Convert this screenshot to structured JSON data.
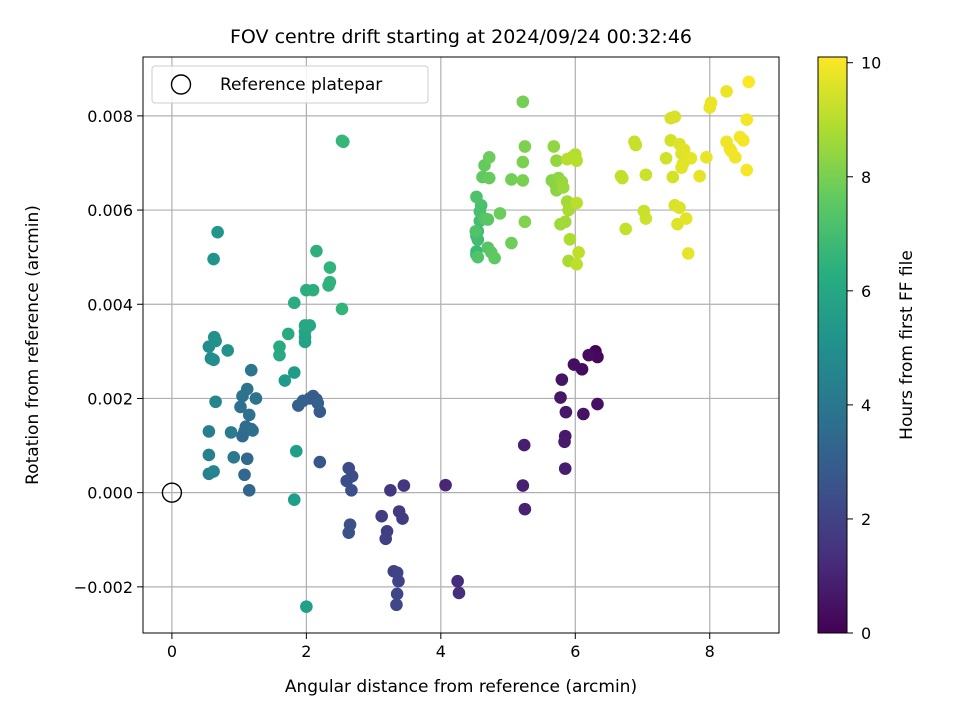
{
  "chart_data": {
    "type": "scatter",
    "title": "FOV centre drift starting at 2024/09/24 00:32:46",
    "xlabel": "Angular distance from reference (arcmin)",
    "ylabel": "Rotation from reference (arcmin)",
    "xlim": [
      -0.43,
      9.03
    ],
    "ylim": [
      -0.00298,
      0.00925
    ],
    "x_ticks": [
      {
        "v": 0,
        "label": "0"
      },
      {
        "v": 2,
        "label": "2"
      },
      {
        "v": 4,
        "label": "4"
      },
      {
        "v": 6,
        "label": "6"
      },
      {
        "v": 8,
        "label": "8"
      }
    ],
    "y_ticks": [
      {
        "v": -0.002,
        "label": "−0.002"
      },
      {
        "v": 0,
        "label": "0.000"
      },
      {
        "v": 0.002,
        "label": "0.002"
      },
      {
        "v": 0.004,
        "label": "0.004"
      },
      {
        "v": 0.006,
        "label": "0.006"
      },
      {
        "v": 0.008,
        "label": "0.008"
      }
    ],
    "grid": true,
    "legend": {
      "placement": "top-left",
      "entries": [
        "Reference platepar"
      ]
    },
    "reference_point": {
      "x": 0,
      "y": 0,
      "label": "Reference platepar"
    },
    "colorbar": {
      "label": "Hours from first FF file",
      "range": [
        0,
        10.1
      ],
      "ticks": [
        {
          "v": 0,
          "label": "0"
        },
        {
          "v": 2,
          "label": "2"
        },
        {
          "v": 4,
          "label": "4"
        },
        {
          "v": 6,
          "label": "6"
        },
        {
          "v": 8,
          "label": "8"
        },
        {
          "v": 10,
          "label": "10"
        }
      ],
      "colormap": "viridis"
    },
    "series": [
      {
        "points": [
          [
            6.3,
            0.003,
            0.1
          ],
          [
            6.33,
            0.00288,
            0.2
          ],
          [
            6.2,
            0.00292,
            0.3
          ],
          [
            6.1,
            0.00262,
            0.35
          ],
          [
            5.98,
            0.00272,
            0.4
          ],
          [
            6.33,
            0.00188,
            0.45
          ],
          [
            6.12,
            0.00167,
            0.5
          ],
          [
            5.8,
            0.0024,
            0.55
          ],
          [
            5.78,
            0.00202,
            0.6
          ],
          [
            5.86,
            0.00171,
            0.65
          ],
          [
            5.85,
            0.0012,
            0.7
          ],
          [
            5.84,
            0.00108,
            0.75
          ],
          [
            5.85,
            0.00051,
            0.8
          ],
          [
            5.24,
            0.00101,
            0.85
          ],
          [
            5.22,
            0.00015,
            0.9
          ],
          [
            5.25,
            -0.00035,
            0.95
          ],
          [
            4.07,
            0.00016,
            1.1
          ],
          [
            4.25,
            -0.00188,
            1.3
          ],
          [
            4.27,
            -0.00213,
            1.35
          ],
          [
            3.45,
            0.00015,
            1.6
          ],
          [
            3.25,
            5e-05,
            1.65
          ],
          [
            3.38,
            -0.0004,
            1.7
          ],
          [
            3.43,
            -0.00055,
            1.75
          ],
          [
            3.12,
            -0.0005,
            1.8
          ],
          [
            3.2,
            -0.00082,
            1.85
          ],
          [
            3.18,
            -0.00098,
            1.9
          ],
          [
            3.3,
            -0.00167,
            1.95
          ],
          [
            3.35,
            -0.0017,
            2.0
          ],
          [
            3.37,
            -0.00188,
            2.05
          ],
          [
            3.35,
            -0.00215,
            2.1
          ],
          [
            3.34,
            -0.00238,
            2.15
          ],
          [
            2.63,
            0.00052,
            2.3
          ],
          [
            2.68,
            0.00035,
            2.35
          ],
          [
            2.6,
            0.00025,
            2.4
          ],
          [
            2.67,
            5e-05,
            2.45
          ],
          [
            2.65,
            -0.00068,
            2.5
          ],
          [
            2.63,
            -0.00085,
            2.55
          ],
          [
            2.2,
            0.00065,
            2.7
          ],
          [
            2.2,
            0.00172,
            2.8
          ],
          [
            2.15,
            0.00198,
            2.9
          ],
          [
            2.1,
            0.00205,
            2.95
          ],
          [
            2.05,
            0.002,
            3.0
          ],
          [
            2.17,
            0.0019,
            3.05
          ],
          [
            1.95,
            0.00195,
            3.1
          ],
          [
            1.88,
            0.00185,
            3.15
          ],
          [
            1.15,
            5e-05,
            3.3
          ],
          [
            1.08,
            0.00038,
            3.35
          ],
          [
            1.12,
            0.00072,
            3.4
          ],
          [
            1.05,
            0.0012,
            3.45
          ],
          [
            1.08,
            0.0013,
            3.5
          ],
          [
            1.1,
            0.0014,
            3.55
          ],
          [
            1.18,
            0.00135,
            3.6
          ],
          [
            1.2,
            0.00132,
            3.65
          ],
          [
            1.15,
            0.00165,
            3.7
          ],
          [
            1.02,
            0.00182,
            3.75
          ],
          [
            1.05,
            0.00205,
            3.8
          ],
          [
            1.12,
            0.0022,
            3.85
          ],
          [
            1.25,
            0.002,
            3.9
          ],
          [
            1.18,
            0.0026,
            3.95
          ],
          [
            0.92,
            0.00075,
            4.1
          ],
          [
            0.88,
            0.00128,
            4.2
          ],
          [
            0.55,
            0.0013,
            4.3
          ],
          [
            0.55,
            0.0008,
            4.4
          ],
          [
            0.55,
            0.0004,
            4.5
          ],
          [
            0.62,
            0.00045,
            4.6
          ],
          [
            0.65,
            0.00193,
            4.7
          ],
          [
            0.58,
            0.00285,
            4.8
          ],
          [
            0.55,
            0.0031,
            4.9
          ],
          [
            0.62,
            0.00282,
            5.0
          ],
          [
            0.63,
            0.0033,
            5.05
          ],
          [
            0.65,
            0.00322,
            5.1
          ],
          [
            0.83,
            0.00302,
            5.15
          ],
          [
            0.62,
            0.00496,
            5.25
          ],
          [
            0.68,
            0.00553,
            5.35
          ],
          [
            1.68,
            0.00238,
            5.5
          ],
          [
            1.82,
            0.00255,
            5.55
          ],
          [
            1.82,
            -0.00015,
            5.6
          ],
          [
            1.85,
            0.00088,
            5.65
          ],
          [
            2.0,
            -0.00242,
            5.7
          ],
          [
            1.98,
            0.0032,
            5.8
          ],
          [
            1.98,
            0.0033,
            5.85
          ],
          [
            1.98,
            0.00342,
            5.9
          ],
          [
            2.05,
            0.00355,
            5.95
          ],
          [
            1.98,
            0.00355,
            6.0
          ],
          [
            1.6,
            0.00292,
            6.05
          ],
          [
            1.6,
            0.0031,
            6.1
          ],
          [
            1.73,
            0.00337,
            6.15
          ],
          [
            1.82,
            0.00403,
            6.2
          ],
          [
            2.0,
            0.0043,
            6.3
          ],
          [
            2.1,
            0.0043,
            6.35
          ],
          [
            2.15,
            0.00513,
            6.4
          ],
          [
            2.33,
            0.0044,
            6.45
          ],
          [
            2.35,
            0.00447,
            6.5
          ],
          [
            2.35,
            0.00478,
            6.55
          ],
          [
            2.53,
            0.0039,
            6.6
          ],
          [
            2.53,
            0.00747,
            6.7
          ],
          [
            2.55,
            0.00745,
            6.75
          ],
          [
            4.53,
            0.00505,
            6.8
          ],
          [
            4.53,
            0.00512,
            6.85
          ],
          [
            4.53,
            0.00545,
            6.9
          ],
          [
            4.55,
            0.00555,
            6.95
          ],
          [
            4.55,
            0.00537,
            7.0
          ],
          [
            4.58,
            0.00577,
            7.05
          ],
          [
            4.58,
            0.00597,
            7.1
          ],
          [
            4.6,
            0.0061,
            7.15
          ],
          [
            4.53,
            0.00628,
            7.2
          ],
          [
            4.52,
            0.00555,
            7.25
          ],
          [
            4.55,
            0.005,
            7.3
          ],
          [
            4.65,
            0.00582,
            7.35
          ],
          [
            4.7,
            0.0052,
            7.4
          ],
          [
            4.7,
            0.0058,
            7.45
          ],
          [
            4.75,
            0.0051,
            7.5
          ],
          [
            4.8,
            0.00498,
            7.55
          ],
          [
            4.62,
            0.0067,
            7.6
          ],
          [
            4.65,
            0.00695,
            7.65
          ],
          [
            4.72,
            0.00668,
            7.7
          ],
          [
            4.72,
            0.00712,
            7.75
          ],
          [
            4.88,
            0.00593,
            7.8
          ],
          [
            5.05,
            0.0053,
            7.85
          ],
          [
            5.05,
            0.00665,
            7.9
          ],
          [
            5.22,
            0.0083,
            7.95
          ],
          [
            5.22,
            0.00663,
            8.0
          ],
          [
            5.22,
            0.00702,
            8.05
          ],
          [
            5.25,
            0.00735,
            8.1
          ],
          [
            5.25,
            0.00575,
            8.15
          ],
          [
            5.65,
            0.00663,
            8.2
          ],
          [
            5.7,
            0.00655,
            8.25
          ],
          [
            5.72,
            0.00642,
            8.3
          ],
          [
            5.75,
            0.00668,
            8.35
          ],
          [
            5.68,
            0.00735,
            8.4
          ],
          [
            5.72,
            0.00705,
            8.45
          ],
          [
            5.8,
            0.0066,
            8.5
          ],
          [
            5.82,
            0.00648,
            8.55
          ],
          [
            5.78,
            0.0057,
            8.6
          ],
          [
            5.85,
            0.00575,
            8.65
          ],
          [
            5.88,
            0.00618,
            8.7
          ],
          [
            5.9,
            0.006,
            8.75
          ],
          [
            5.9,
            0.00492,
            8.8
          ],
          [
            5.92,
            0.00538,
            8.85
          ],
          [
            5.95,
            0.00712,
            8.9
          ],
          [
            6.0,
            0.00718,
            8.95
          ],
          [
            6.02,
            0.00705,
            9.0
          ],
          [
            5.88,
            0.00708,
            9.02
          ],
          [
            6.02,
            0.00615,
            9.05
          ],
          [
            6.02,
            0.00485,
            9.08
          ],
          [
            6.05,
            0.0051,
            9.1
          ],
          [
            6.68,
            0.00672,
            9.15
          ],
          [
            6.7,
            0.00668,
            9.18
          ],
          [
            6.75,
            0.0056,
            9.2
          ],
          [
            6.88,
            0.00745,
            9.25
          ],
          [
            6.9,
            0.00738,
            9.28
          ],
          [
            7.02,
            0.00598,
            9.3
          ],
          [
            7.05,
            0.00582,
            9.33
          ],
          [
            7.05,
            0.00675,
            9.36
          ],
          [
            7.35,
            0.0071,
            9.4
          ],
          [
            7.42,
            0.00748,
            9.42
          ],
          [
            7.45,
            0.0067,
            9.45
          ],
          [
            7.42,
            0.00795,
            9.48
          ],
          [
            7.48,
            0.00798,
            9.5
          ],
          [
            7.48,
            0.0061,
            9.52
          ],
          [
            7.55,
            0.00605,
            9.55
          ],
          [
            7.52,
            0.0057,
            9.58
          ],
          [
            7.55,
            0.0074,
            9.6
          ],
          [
            7.58,
            0.0072,
            9.62
          ],
          [
            7.6,
            0.00698,
            9.64
          ],
          [
            7.62,
            0.00728,
            9.66
          ],
          [
            7.58,
            0.0069,
            9.68
          ],
          [
            7.65,
            0.00582,
            9.7
          ],
          [
            7.68,
            0.00508,
            9.72
          ],
          [
            7.72,
            0.0071,
            9.74
          ],
          [
            7.85,
            0.00672,
            9.76
          ],
          [
            7.95,
            0.00712,
            9.78
          ],
          [
            8.0,
            0.00818,
            9.8
          ],
          [
            8.02,
            0.00828,
            9.82
          ],
          [
            8.25,
            0.00852,
            9.84
          ],
          [
            8.25,
            0.00745,
            9.86
          ],
          [
            8.3,
            0.0073,
            9.88
          ],
          [
            8.32,
            0.00725,
            9.9
          ],
          [
            8.38,
            0.00712,
            9.92
          ],
          [
            8.45,
            0.00755,
            9.94
          ],
          [
            8.5,
            0.00748,
            9.96
          ],
          [
            8.55,
            0.00792,
            9.98
          ],
          [
            8.55,
            0.00685,
            10.0
          ],
          [
            8.58,
            0.00872,
            10.05
          ]
        ]
      }
    ]
  }
}
